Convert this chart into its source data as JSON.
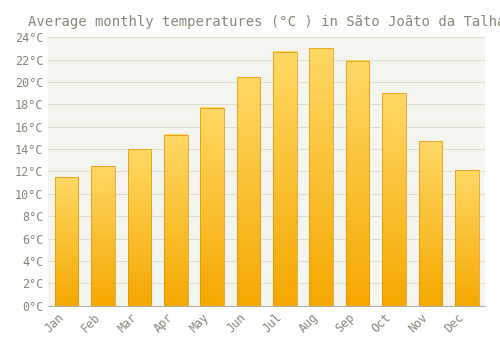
{
  "title": "Average monthly temperatures (°C ) in Sãto Joãto da Talha",
  "months": [
    "Jan",
    "Feb",
    "Mar",
    "Apr",
    "May",
    "Jun",
    "Jul",
    "Aug",
    "Sep",
    "Oct",
    "Nov",
    "Dec"
  ],
  "temperatures": [
    11.5,
    12.5,
    14.0,
    15.3,
    17.7,
    20.4,
    22.7,
    23.0,
    21.9,
    19.0,
    14.7,
    12.1
  ],
  "bar_color_bottom": "#F5A800",
  "bar_color_top": "#FFD966",
  "bar_edge_color": "#E09000",
  "background_color": "#FFFFFF",
  "plot_bg_color": "#F5F5F0",
  "grid_color": "#DDDDCC",
  "text_color": "#888877",
  "ylim": [
    0,
    24
  ],
  "ytick_step": 2,
  "title_fontsize": 10,
  "tick_fontsize": 8.5,
  "figsize": [
    5.0,
    3.5
  ],
  "dpi": 100
}
